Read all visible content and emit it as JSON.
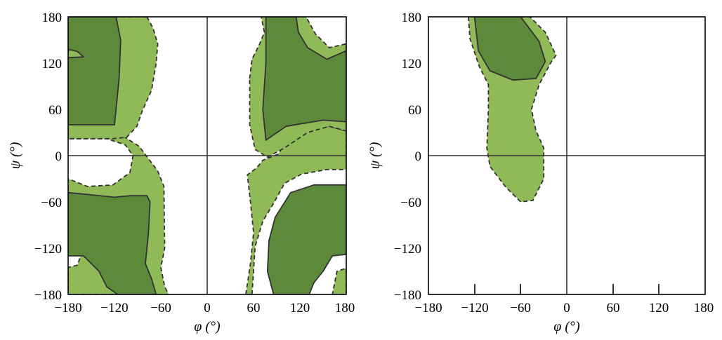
{
  "chart_data": [
    {
      "type": "area",
      "panel": "left",
      "xlabel": "φ (°)",
      "ylabel": "ψ (°)",
      "xlim": [
        -180,
        180
      ],
      "ylim": [
        -180,
        180
      ],
      "x_ticks": [
        "−180",
        "−120",
        "−60",
        "0",
        "60",
        "120",
        "180"
      ],
      "y_ticks": [
        "180",
        "120",
        "60",
        "0",
        "−60",
        "−120",
        "−180"
      ],
      "grid": false,
      "zero_lines": true,
      "colors": {
        "allowed_fill": "#8fba57",
        "favored_fill": "#5d8a3a",
        "outline": "#333333"
      },
      "regions": [
        {
          "kind": "allowed",
          "border": "dashed",
          "points": [
            [
              -180,
              36
            ],
            [
              -150,
              33
            ],
            [
              -110,
              26
            ],
            [
              -88,
              12
            ],
            [
              -76,
              -4
            ],
            [
              -64,
              -20
            ],
            [
              -56,
              -40
            ],
            [
              -55,
              -120
            ],
            [
              -60,
              -145
            ],
            [
              -55,
              -170
            ],
            [
              -50,
              -180
            ],
            [
              -180,
              -180
            ],
            [
              -180,
              -145
            ],
            [
              -168,
              -142
            ],
            [
              -162,
              -125
            ],
            [
              -175,
              -100
            ],
            [
              -180,
              -90
            ],
            [
              -180,
              -30
            ],
            [
              -155,
              -40
            ],
            [
              -122,
              -38
            ],
            [
              -100,
              -22
            ],
            [
              -96,
              0
            ],
            [
              -106,
              14
            ],
            [
              -130,
              22
            ],
            [
              -180,
              22
            ]
          ]
        },
        {
          "kind": "allowed",
          "border": "dashed",
          "points": [
            [
              -180,
              180
            ],
            [
              -152,
              180
            ],
            [
              -160,
              168
            ],
            [
              -165,
              145
            ],
            [
              -172,
              135
            ],
            [
              -180,
              136
            ]
          ]
        },
        {
          "kind": "allowed",
          "border": "dashed",
          "points": [
            [
              -78,
              180
            ],
            [
              -70,
              165
            ],
            [
              -64,
              145
            ],
            [
              -66,
              120
            ],
            [
              -72,
              85
            ],
            [
              -84,
              58
            ],
            [
              -91,
              38
            ],
            [
              -104,
              24
            ],
            [
              -122,
              22
            ],
            [
              -180,
              22
            ],
            [
              -180,
              136
            ],
            [
              -165,
              145
            ],
            [
              -160,
              168
            ],
            [
              -152,
              180
            ]
          ]
        },
        {
          "kind": "allowed",
          "border": "dashed",
          "points": [
            [
              58,
              -180
            ],
            [
              60,
              -150
            ],
            [
              62,
              -118
            ],
            [
              72,
              -85
            ],
            [
              87,
              -60
            ],
            [
              100,
              -36
            ],
            [
              122,
              -24
            ],
            [
              155,
              -18
            ],
            [
              180,
              -18
            ],
            [
              180,
              32
            ],
            [
              158,
              38
            ],
            [
              128,
              36
            ],
            [
              105,
              24
            ],
            [
              92,
              2
            ],
            [
              72,
              -6
            ],
            [
              64,
              -16
            ],
            [
              52,
              -25
            ],
            [
              56,
              -60
            ],
            [
              60,
              -100
            ],
            [
              56,
              -140
            ],
            [
              50,
              -180
            ]
          ]
        },
        {
          "kind": "allowed",
          "border": "dashed",
          "points": [
            [
              55,
              100
            ],
            [
              58,
              125
            ],
            [
              68,
              145
            ],
            [
              74,
              160
            ],
            [
              70,
              180
            ],
            [
              128,
              180
            ],
            [
              140,
              158
            ],
            [
              158,
              140
            ],
            [
              180,
              145
            ],
            [
              180,
              32
            ],
            [
              158,
              38
            ],
            [
              130,
              30
            ],
            [
              100,
              10
            ],
            [
              78,
              -2
            ],
            [
              62,
              8
            ],
            [
              55,
              40
            ]
          ]
        },
        {
          "kind": "allowed",
          "border": "dashed",
          "points": [
            [
              162,
              -180
            ],
            [
              180,
              -180
            ],
            [
              180,
              -146
            ],
            [
              168,
              -150
            ]
          ]
        },
        {
          "kind": "favored",
          "border": "solid",
          "points": [
            [
              -180,
              40
            ],
            [
              -120,
              40
            ],
            [
              -118,
              60
            ],
            [
              -114,
              100
            ],
            [
              -112,
              150
            ],
            [
              -118,
              180
            ],
            [
              -180,
              180
            ],
            [
              -180,
              138
            ],
            [
              -168,
              135
            ],
            [
              -160,
              128
            ],
            [
              -180,
              127
            ]
          ]
        },
        {
          "kind": "favored",
          "border": "solid",
          "points": [
            [
              -180,
              -48
            ],
            [
              -158,
              -50
            ],
            [
              -120,
              -54
            ],
            [
              -100,
              -52
            ],
            [
              -78,
              -52
            ],
            [
              -74,
              -60
            ],
            [
              -76,
              -100
            ],
            [
              -80,
              -140
            ],
            [
              -72,
              -160
            ],
            [
              -66,
              -180
            ],
            [
              -116,
              -180
            ],
            [
              -130,
              -170
            ],
            [
              -140,
              -150
            ],
            [
              -160,
              -130
            ],
            [
              -180,
              -130
            ]
          ]
        },
        {
          "kind": "favored",
          "border": "solid",
          "points": [
            [
              76,
              120
            ],
            [
              72,
              60
            ],
            [
              76,
              20
            ],
            [
              102,
              38
            ],
            [
              150,
              46
            ],
            [
              180,
              44
            ],
            [
              180,
              136
            ],
            [
              155,
              125
            ],
            [
              130,
              140
            ],
            [
              118,
              160
            ],
            [
              115,
              180
            ],
            [
              76,
              180
            ]
          ]
        },
        {
          "kind": "favored",
          "border": "solid",
          "points": [
            [
              86,
              -180
            ],
            [
              78,
              -150
            ],
            [
              80,
              -110
            ],
            [
              88,
              -80
            ],
            [
              108,
              -48
            ],
            [
              138,
              -38
            ],
            [
              180,
              -38
            ],
            [
              180,
              -128
            ],
            [
              162,
              -130
            ],
            [
              150,
              -150
            ],
            [
              138,
              -165
            ],
            [
              132,
              -180
            ]
          ]
        }
      ]
    },
    {
      "type": "area",
      "panel": "right",
      "xlabel": "φ (°)",
      "ylabel": "ψ (°)",
      "xlim": [
        -180,
        180
      ],
      "ylim": [
        -180,
        180
      ],
      "x_ticks": [
        "−180",
        "−120",
        "−60",
        "0",
        "60",
        "120",
        "180"
      ],
      "y_ticks": [
        "180",
        "120",
        "60",
        "0",
        "−60",
        "−120",
        "−180"
      ],
      "grid": false,
      "zero_lines": true,
      "colors": {
        "allowed_fill": "#8fba57",
        "favored_fill": "#5d8a3a",
        "outline": "#333333"
      },
      "regions": [
        {
          "kind": "allowed",
          "border": "dashed",
          "points": [
            [
              -128,
              180
            ],
            [
              -126,
              152
            ],
            [
              -114,
              116
            ],
            [
              -102,
              92
            ],
            [
              -102,
              60
            ],
            [
              -104,
              10
            ],
            [
              -100,
              -14
            ],
            [
              -80,
              -40
            ],
            [
              -60,
              -60
            ],
            [
              -44,
              -58
            ],
            [
              -30,
              -30
            ],
            [
              -30,
              10
            ],
            [
              -40,
              32
            ],
            [
              -46,
              60
            ],
            [
              -36,
              92
            ],
            [
              -20,
              122
            ],
            [
              -14,
              130
            ],
            [
              -28,
              160
            ],
            [
              -48,
              180
            ]
          ]
        },
        {
          "kind": "favored",
          "border": "solid",
          "points": [
            [
              -120,
              180
            ],
            [
              -115,
              136
            ],
            [
              -100,
              110
            ],
            [
              -70,
              98
            ],
            [
              -40,
              100
            ],
            [
              -28,
              122
            ],
            [
              -36,
              148
            ],
            [
              -60,
              180
            ]
          ]
        }
      ]
    }
  ]
}
